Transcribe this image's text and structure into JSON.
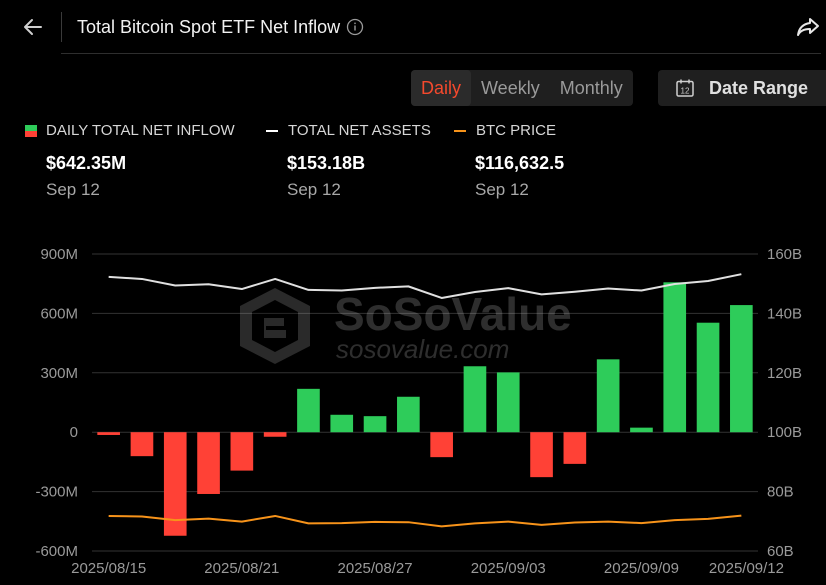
{
  "header": {
    "title": "Total Bitcoin Spot ETF Net Inflow"
  },
  "tabs": [
    {
      "label": "Daily",
      "active": true
    },
    {
      "label": "Weekly",
      "active": false
    },
    {
      "label": "Monthly",
      "active": false
    }
  ],
  "date_range": {
    "label": "Date Range"
  },
  "legend": [
    {
      "label": "DAILY TOTAL NET INFLOW",
      "value": "$642.35M",
      "date": "Sep 12",
      "swatch": "bar"
    },
    {
      "label": "TOTAL NET ASSETS",
      "value": "$153.18B",
      "date": "Sep 12",
      "swatch": "line",
      "color": "#ffffff"
    },
    {
      "label": "BTC PRICE",
      "value": "$116,632.5",
      "date": "Sep 12",
      "swatch": "line",
      "color": "#f7931a"
    }
  ],
  "colors": {
    "positive": "#2ecc5a",
    "negative": "#ff4136",
    "net_assets_line": "#e0e0e0",
    "btc_price_line": "#f7931a",
    "accent": "#f4492d",
    "grid": "#333333"
  },
  "watermark": {
    "brand": "SoSoValue",
    "url": "sosovalue.com"
  },
  "chart_data": {
    "type": "bar",
    "x_tick_labels": [
      "2025/08/15",
      "2025/08/21",
      "2025/08/27",
      "2025/09/03",
      "2025/09/09",
      "2025/09/12"
    ],
    "categories": [
      "2025/08/15",
      "2025/08/18",
      "2025/08/19",
      "2025/08/20",
      "2025/08/21",
      "2025/08/22",
      "2025/08/25",
      "2025/08/26",
      "2025/08/27",
      "2025/08/28",
      "2025/08/29",
      "2025/09/02",
      "2025/09/03",
      "2025/09/04",
      "2025/09/05",
      "2025/09/08",
      "2025/09/09",
      "2025/09/10",
      "2025/09/11",
      "2025/09/12"
    ],
    "series": [
      {
        "name": "DAILY TOTAL NET INFLOW",
        "unit": "M",
        "axis": "left",
        "kind": "bar",
        "values": [
          -14,
          -121,
          -523,
          -312,
          -194,
          -23,
          219,
          88,
          81,
          179,
          -126,
          333,
          302,
          -227,
          -160,
          368,
          23,
          757,
          553,
          642
        ]
      },
      {
        "name": "TOTAL NET ASSETS",
        "unit": "B",
        "axis": "right",
        "kind": "line",
        "values": [
          152.3,
          151.6,
          149.4,
          149.8,
          148.2,
          151.6,
          147.9,
          147.7,
          148.6,
          149.1,
          145.2,
          147.2,
          148.5,
          146.4,
          147.3,
          148.4,
          147.7,
          149.9,
          150.9,
          153.2
        ]
      },
      {
        "name": "BTC PRICE",
        "unit": "B-axis",
        "axis": "right",
        "kind": "line",
        "values": [
          71.8,
          71.6,
          70.4,
          70.9,
          69.9,
          71.8,
          69.3,
          69.4,
          69.8,
          69.7,
          68.3,
          69.3,
          69.9,
          68.8,
          69.6,
          69.9,
          69.4,
          70.4,
          70.8,
          71.9
        ]
      }
    ],
    "left_axis": {
      "ticks": [
        "900M",
        "600M",
        "300M",
        "0",
        "-300M",
        "-600M"
      ],
      "values": [
        900,
        600,
        300,
        0,
        -300,
        -600
      ],
      "ylim": [
        -600,
        900
      ]
    },
    "right_axis": {
      "ticks": [
        "160B",
        "140B",
        "120B",
        "100B",
        "80B",
        "60B"
      ],
      "values": [
        160,
        140,
        120,
        100,
        80,
        60
      ],
      "ylim": [
        60,
        160
      ]
    },
    "grid": true
  }
}
